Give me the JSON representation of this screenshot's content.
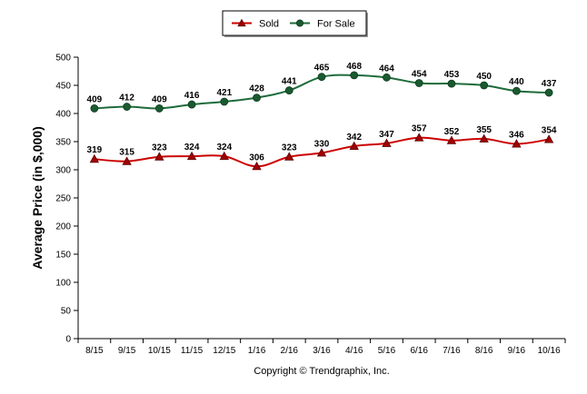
{
  "chart_data": {
    "type": "line",
    "categories": [
      "8/15",
      "9/15",
      "10/15",
      "11/15",
      "12/15",
      "1/16",
      "2/16",
      "3/16",
      "4/16",
      "5/16",
      "6/16",
      "7/16",
      "8/16",
      "9/16",
      "10/16"
    ],
    "series": [
      {
        "name": "Sold",
        "color": "#cc0000",
        "marker": "triangle",
        "values": [
          319,
          315,
          323,
          324,
          324,
          306,
          323,
          330,
          342,
          347,
          357,
          352,
          355,
          346,
          354
        ]
      },
      {
        "name": "For Sale",
        "color": "#1e6b3a",
        "marker": "circle",
        "values": [
          409,
          412,
          409,
          416,
          421,
          428,
          441,
          465,
          468,
          464,
          454,
          453,
          450,
          440,
          437
        ]
      }
    ],
    "ylabel": "Average Price (in $,000)",
    "xlabel": "",
    "ylim": [
      0,
      500
    ],
    "yticks": [
      0,
      50,
      100,
      150,
      200,
      250,
      300,
      350,
      400,
      450,
      500
    ],
    "legend_position": "top-center",
    "grid": false
  },
  "footer": {
    "copyright": "Copyright © Trendgraphix, Inc."
  }
}
